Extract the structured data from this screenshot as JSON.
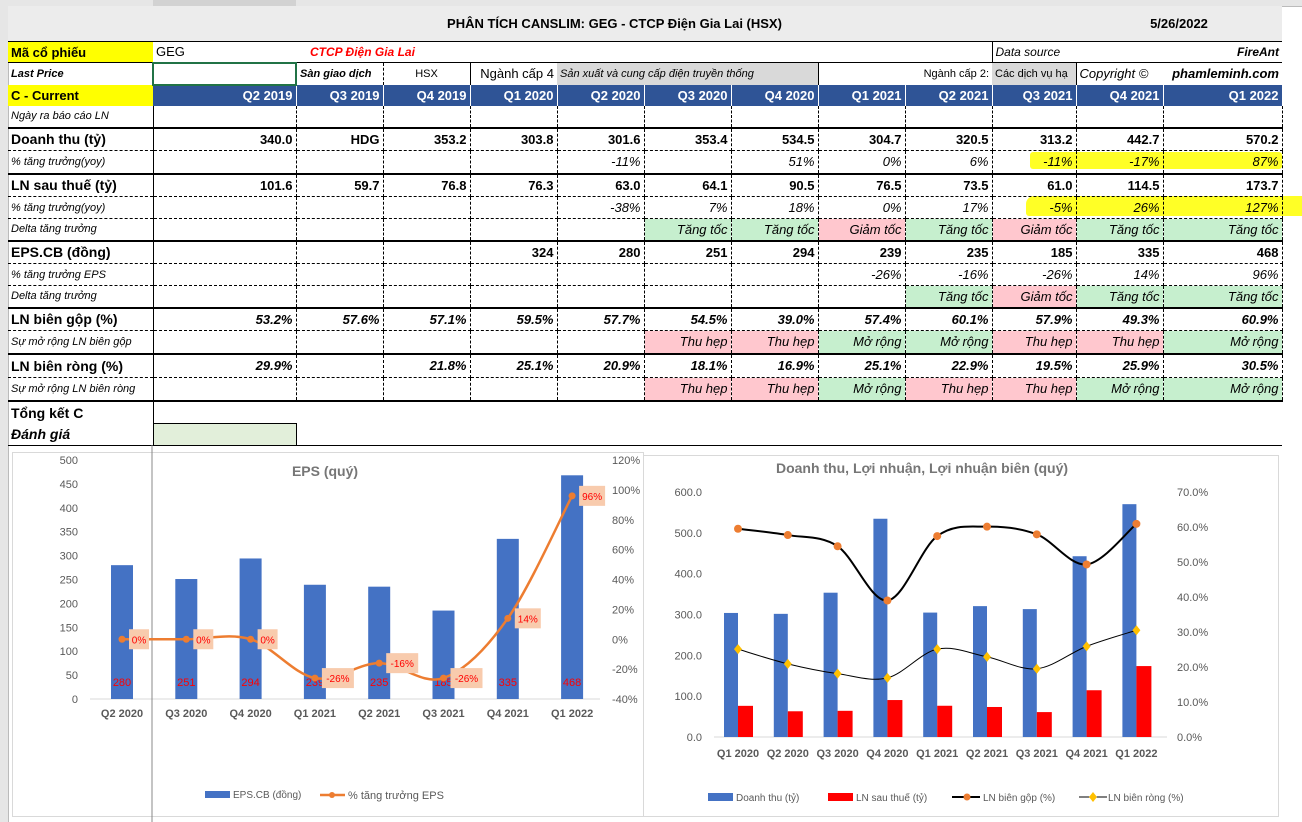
{
  "header": {
    "title": "PHÂN TÍCH CANSLIM: GEG - CTCP Điện Gia Lai (HSX)",
    "date": "5/26/2022"
  },
  "info": {
    "ticker_label": "Mã cổ phiếu",
    "ticker": "GEG",
    "company": "CTCP Điện Gia Lai",
    "data_source_label": "Data source",
    "data_source": "FireAnt",
    "last_price_label": "Last Price",
    "last_price": "",
    "exchange_label": "Sàn giao dịch",
    "exchange": "HSX",
    "industry4_label": "Ngành cấp 4",
    "industry4": "Sản xuất và cung cấp điện truyền thống",
    "industry2_label": "Ngành cấp 2:",
    "industry2": "Các dịch vụ hạ",
    "copyright_label": "Copyright ©",
    "copyright": "phamleminh.com"
  },
  "table": {
    "section_label": "C - Current",
    "quarters": [
      "Q2 2019",
      "Q3 2019",
      "Q4 2019",
      "Q1 2020",
      "Q2 2020",
      "Q3 2020",
      "Q4 2020",
      "Q1 2021",
      "Q2 2021",
      "Q3 2021",
      "Q4 2021",
      "Q1 2022"
    ],
    "rows": [
      {
        "label": "Ngày ra báo cáo LN",
        "type": "sub",
        "values": [
          "",
          "",
          "",
          "",
          "",
          "",
          "",
          "",
          "",
          "",
          "",
          ""
        ]
      },
      {
        "label": "Doanh thu (tỷ)",
        "type": "main",
        "values": [
          "340.0",
          "HDG",
          "353.2",
          "303.8",
          "301.6",
          "353.4",
          "534.5",
          "304.7",
          "320.5",
          "313.2",
          "442.7",
          "570.2"
        ]
      },
      {
        "label": "% tăng trưởng(yoy)",
        "type": "pct",
        "values": [
          "",
          "",
          "",
          "",
          "-11%",
          "",
          "51%",
          "0%",
          "6%",
          "-11%",
          "-17%",
          "87%"
        ]
      },
      {
        "label": "LN sau thuế (tỷ)",
        "type": "main",
        "values": [
          "101.6",
          "59.7",
          "76.8",
          "76.3",
          "63.0",
          "64.1",
          "90.5",
          "76.5",
          "73.5",
          "61.0",
          "114.5",
          "173.7"
        ]
      },
      {
        "label": "% tăng trưởng(yoy)",
        "type": "pct",
        "values": [
          "",
          "",
          "",
          "",
          "-38%",
          "7%",
          "18%",
          "0%",
          "17%",
          "-5%",
          "26%",
          "127%"
        ]
      },
      {
        "label": "Delta tăng trưởng",
        "type": "flag",
        "values": [
          "",
          "",
          "",
          "",
          "",
          "Tăng tốc",
          "Tăng tốc",
          "Giảm tốc",
          "Tăng tốc",
          "Giảm tốc",
          "Tăng tốc",
          "Tăng tốc"
        ]
      },
      {
        "label": "EPS.CB (đồng)",
        "type": "main",
        "values": [
          "",
          "",
          "",
          "324",
          "280",
          "251",
          "294",
          "239",
          "235",
          "185",
          "335",
          "468"
        ]
      },
      {
        "label": "% tăng trưởng EPS",
        "type": "pct",
        "values": [
          "",
          "",
          "",
          "",
          "",
          "",
          "",
          "-26%",
          "-16%",
          "-26%",
          "14%",
          "96%"
        ]
      },
      {
        "label": "Delta tăng trưởng",
        "type": "flag",
        "values": [
          "",
          "",
          "",
          "",
          "",
          "",
          "",
          "",
          "Tăng tốc",
          "Giảm tốc",
          "Tăng tốc",
          "Tăng tốc"
        ]
      },
      {
        "label": "LN biên gộp (%)",
        "type": "margin",
        "values": [
          "53.2%",
          "57.6%",
          "57.1%",
          "59.5%",
          "57.7%",
          "54.5%",
          "39.0%",
          "57.4%",
          "60.1%",
          "57.9%",
          "49.3%",
          "60.9%"
        ]
      },
      {
        "label": "Sự mở rộng LN biên gộp",
        "type": "flag",
        "values": [
          "",
          "",
          "",
          "",
          "",
          "Thu hẹp",
          "Thu hẹp",
          "Mở rộng",
          "Mở rộng",
          "Thu hẹp",
          "Thu hẹp",
          "Mở rộng"
        ]
      },
      {
        "label": "LN biên ròng (%)",
        "type": "margin",
        "values": [
          "29.9%",
          "",
          "21.8%",
          "25.1%",
          "20.9%",
          "18.1%",
          "16.9%",
          "25.1%",
          "22.9%",
          "19.5%",
          "25.9%",
          "30.5%"
        ]
      },
      {
        "label": "Sự mở rộng LN biên ròng",
        "type": "flag",
        "values": [
          "",
          "",
          "",
          "",
          "",
          "Thu hẹp",
          "Thu hẹp",
          "Mở rộng",
          "Thu hẹp",
          "Thu hẹp",
          "Mở rộng",
          "Mở rộng"
        ]
      }
    ],
    "summary_label": "Tổng kết C",
    "rating_label": "Đánh giá",
    "rating_value": ""
  },
  "colors": {
    "good": "#C6EFCE",
    "bad": "#FFC7CE",
    "header": "#2F5496",
    "bar_blue": "#4472C4",
    "bar_red": "#FF0000",
    "line_orange": "#ED7D31",
    "diamond": "#FFC000"
  },
  "chart_data": [
    {
      "type": "bar+line",
      "title": "EPS  (quý)",
      "categories": [
        "Q2 2020",
        "Q3 2020",
        "Q4 2020",
        "Q1 2021",
        "Q2 2021",
        "Q3 2021",
        "Q4 2021",
        "Q1 2022"
      ],
      "series": [
        {
          "name": "EPS.CB (đồng)",
          "type": "bar",
          "axis": "left",
          "values": [
            280,
            251,
            294,
            239,
            235,
            185,
            335,
            468
          ],
          "labels": [
            "280",
            "251",
            "294",
            "239",
            "235",
            "185",
            "335",
            "468"
          ]
        },
        {
          "name": "% tăng trưởng EPS",
          "type": "line",
          "axis": "right",
          "values": [
            0,
            0,
            0,
            -26,
            -16,
            -26,
            14,
            96
          ],
          "labels": [
            "0%",
            "0%",
            "0%",
            "-26%",
            "-16%",
            "-26%",
            "14%",
            "96%"
          ]
        }
      ],
      "ylim": [
        0,
        500
      ],
      "yticks": [
        "0",
        "50",
        "100",
        "150",
        "200",
        "250",
        "300",
        "350",
        "400",
        "450",
        "500"
      ],
      "y2lim": [
        -40,
        120
      ],
      "y2ticks": [
        "-40%",
        "-20%",
        "0%",
        "20%",
        "40%",
        "60%",
        "80%",
        "100%",
        "120%"
      ],
      "legend": "bottom"
    },
    {
      "type": "bar+line",
      "title": "Doanh thu, Lợi nhuận, Lợi nhuận biên (quý)",
      "categories": [
        "Q1 2020",
        "Q2 2020",
        "Q3 2020",
        "Q4 2020",
        "Q1 2021",
        "Q2 2021",
        "Q3 2021",
        "Q4 2021",
        "Q1 2022"
      ],
      "series": [
        {
          "name": "Doanh thu (tỷ)",
          "type": "bar",
          "axis": "left",
          "values": [
            303.8,
            301.6,
            353.4,
            534.5,
            304.7,
            320.5,
            313.2,
            442.7,
            570.2
          ]
        },
        {
          "name": "LN sau thuế (tỷ)",
          "type": "bar",
          "axis": "left",
          "values": [
            76.3,
            63.0,
            64.1,
            90.5,
            76.5,
            73.5,
            61.0,
            114.5,
            173.7
          ]
        },
        {
          "name": "LN biên gộp (%)",
          "type": "line",
          "axis": "right",
          "values": [
            59.5,
            57.7,
            54.5,
            39.0,
            57.4,
            60.1,
            57.9,
            49.3,
            60.9
          ]
        },
        {
          "name": "LN biên ròng (%)",
          "type": "line",
          "axis": "right",
          "values": [
            25.1,
            20.9,
            18.1,
            16.9,
            25.1,
            22.9,
            19.5,
            25.9,
            30.5
          ]
        }
      ],
      "ylim": [
        0,
        600
      ],
      "yticks": [
        "0.0",
        "100.0",
        "200.0",
        "300.0",
        "400.0",
        "500.0",
        "600.0"
      ],
      "y2lim": [
        0,
        70
      ],
      "y2ticks": [
        "0.0%",
        "10.0%",
        "20.0%",
        "30.0%",
        "40.0%",
        "50.0%",
        "60.0%",
        "70.0%"
      ],
      "legend": "bottom"
    }
  ]
}
